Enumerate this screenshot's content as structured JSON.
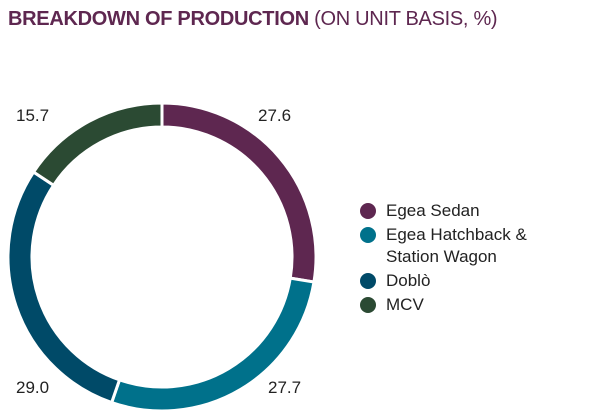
{
  "title": {
    "main": "BREAKDOWN OF PRODUCTION",
    "sub": "(ON UNIT BASIS, %)"
  },
  "chart_data": {
    "type": "pie",
    "variant": "donut",
    "title": "BREAKDOWN OF PRODUCTION (ON UNIT BASIS, %)",
    "categories": [
      "Egea Sedan",
      "Egea Hatchback & Station Wagon",
      "Doblò",
      "MCV"
    ],
    "values": [
      27.6,
      27.7,
      29.0,
      15.7
    ],
    "value_labels": [
      "27.6",
      "27.7",
      "29.0",
      "15.7"
    ],
    "colors": [
      "#5e2750",
      "#00718b",
      "#004a68",
      "#2b4a33"
    ],
    "legend_position": "right"
  },
  "legend": {
    "items": [
      {
        "label": "Egea Sedan",
        "color": "#5e2750"
      },
      {
        "label": "Egea Hatchback & Station Wagon",
        "color": "#00718b"
      },
      {
        "label": "Doblò",
        "color": "#004a68"
      },
      {
        "label": "MCV",
        "color": "#2b4a33"
      }
    ]
  }
}
